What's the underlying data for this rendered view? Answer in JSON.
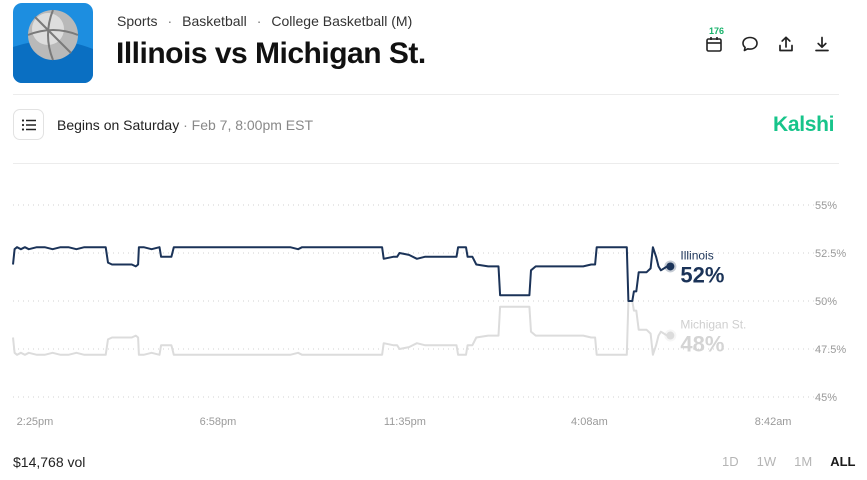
{
  "header": {
    "breadcrumb": [
      "Sports",
      "Basketball",
      "College Basketball (M)"
    ],
    "title": "Illinois vs Michigan St.",
    "calendar_count": "176",
    "icons": [
      "calendar-icon",
      "comment-icon",
      "share-icon",
      "download-icon"
    ]
  },
  "info": {
    "begins": "Begins on Saturday",
    "date": " · Feb 7, 8:00pm EST",
    "brand": "Kalshi"
  },
  "colors": {
    "primary": "#1b3358",
    "secondary": "#dcdcdc",
    "brand": "#17c48a"
  },
  "chart_data": {
    "type": "line",
    "ylim": [
      45,
      55
    ],
    "y_ticks": [
      "55%",
      "52.5%",
      "50%",
      "47.5%",
      "45%"
    ],
    "y_tick_values": [
      55,
      52.5,
      50,
      47.5,
      45
    ],
    "x_ticks": [
      "2:25pm",
      "6:58pm",
      "11:35pm",
      "4:08am",
      "8:42am"
    ],
    "x_tick_positions": [
      0,
      0.231,
      0.467,
      0.7,
      0.932
    ],
    "x_range": [
      0,
      1.0
    ],
    "series": [
      {
        "name": "Illinois",
        "label": "52%",
        "points": [
          [
            0,
            51.9
          ],
          [
            0.002,
            52.7
          ],
          [
            0.005,
            52.8
          ],
          [
            0.01,
            52.7
          ],
          [
            0.015,
            52.8
          ],
          [
            0.02,
            52.7
          ],
          [
            0.03,
            52.8
          ],
          [
            0.04,
            52.8
          ],
          [
            0.05,
            52.7
          ],
          [
            0.06,
            52.8
          ],
          [
            0.07,
            52.8
          ],
          [
            0.08,
            52.7
          ],
          [
            0.09,
            52.8
          ],
          [
            0.1,
            52.8
          ],
          [
            0.117,
            52.8
          ],
          [
            0.12,
            52.0
          ],
          [
            0.125,
            51.9
          ],
          [
            0.15,
            51.9
          ],
          [
            0.155,
            51.8
          ],
          [
            0.158,
            51.9
          ],
          [
            0.159,
            52.8
          ],
          [
            0.165,
            52.8
          ],
          [
            0.175,
            52.7
          ],
          [
            0.185,
            52.8
          ],
          [
            0.187,
            52.3
          ],
          [
            0.19,
            52.3
          ],
          [
            0.2,
            52.3
          ],
          [
            0.203,
            52.8
          ],
          [
            0.25,
            52.8
          ],
          [
            0.3,
            52.8
          ],
          [
            0.35,
            52.8
          ],
          [
            0.36,
            52.7
          ],
          [
            0.365,
            52.8
          ],
          [
            0.4,
            52.8
          ],
          [
            0.45,
            52.8
          ],
          [
            0.466,
            52.8
          ],
          [
            0.468,
            52.2
          ],
          [
            0.48,
            52.3
          ],
          [
            0.485,
            52.3
          ],
          [
            0.488,
            52.5
          ],
          [
            0.5,
            52.4
          ],
          [
            0.51,
            52.2
          ],
          [
            0.52,
            52.3
          ],
          [
            0.53,
            52.3
          ],
          [
            0.55,
            52.3
          ],
          [
            0.56,
            52.3
          ],
          [
            0.562,
            52.8
          ],
          [
            0.572,
            52.8
          ],
          [
            0.574,
            52.3
          ],
          [
            0.58,
            52.3
          ],
          [
            0.585,
            51.9
          ],
          [
            0.6,
            51.8
          ],
          [
            0.613,
            51.8
          ],
          [
            0.615,
            50.3
          ],
          [
            0.64,
            50.3
          ],
          [
            0.652,
            50.3
          ],
          [
            0.654,
            51.6
          ],
          [
            0.66,
            51.8
          ],
          [
            0.68,
            51.8
          ],
          [
            0.7,
            51.8
          ],
          [
            0.72,
            51.8
          ],
          [
            0.73,
            51.9
          ],
          [
            0.735,
            51.9
          ],
          [
            0.737,
            52.8
          ],
          [
            0.76,
            52.8
          ],
          [
            0.77,
            52.8
          ],
          [
            0.775,
            52.8
          ],
          [
            0.777,
            50.0
          ],
          [
            0.782,
            50.0
          ],
          [
            0.784,
            50.5
          ],
          [
            0.787,
            50.5
          ],
          [
            0.79,
            51.5
          ],
          [
            0.8,
            51.5
          ],
          [
            0.805,
            51.7
          ],
          [
            0.808,
            52.8
          ],
          [
            0.812,
            52.3
          ],
          [
            0.815,
            51.8
          ],
          [
            0.818,
            51.6
          ],
          [
            0.822,
            51.7
          ],
          [
            0.826,
            51.8
          ],
          [
            0.83,
            51.8
          ]
        ]
      },
      {
        "name": "Michigan St.",
        "label": "48%",
        "points": [
          [
            0,
            48.1
          ],
          [
            0.002,
            47.3
          ],
          [
            0.005,
            47.2
          ],
          [
            0.01,
            47.3
          ],
          [
            0.015,
            47.2
          ],
          [
            0.02,
            47.3
          ],
          [
            0.03,
            47.2
          ],
          [
            0.04,
            47.2
          ],
          [
            0.05,
            47.3
          ],
          [
            0.06,
            47.2
          ],
          [
            0.07,
            47.2
          ],
          [
            0.08,
            47.3
          ],
          [
            0.09,
            47.2
          ],
          [
            0.1,
            47.2
          ],
          [
            0.117,
            47.2
          ],
          [
            0.12,
            48.0
          ],
          [
            0.125,
            48.1
          ],
          [
            0.15,
            48.1
          ],
          [
            0.155,
            48.2
          ],
          [
            0.158,
            48.1
          ],
          [
            0.159,
            47.2
          ],
          [
            0.165,
            47.2
          ],
          [
            0.175,
            47.3
          ],
          [
            0.185,
            47.2
          ],
          [
            0.187,
            47.7
          ],
          [
            0.19,
            47.7
          ],
          [
            0.2,
            47.7
          ],
          [
            0.203,
            47.2
          ],
          [
            0.25,
            47.2
          ],
          [
            0.3,
            47.2
          ],
          [
            0.35,
            47.2
          ],
          [
            0.36,
            47.3
          ],
          [
            0.365,
            47.2
          ],
          [
            0.4,
            47.2
          ],
          [
            0.45,
            47.2
          ],
          [
            0.466,
            47.2
          ],
          [
            0.468,
            47.8
          ],
          [
            0.48,
            47.7
          ],
          [
            0.485,
            47.7
          ],
          [
            0.488,
            47.5
          ],
          [
            0.5,
            47.6
          ],
          [
            0.51,
            47.8
          ],
          [
            0.52,
            47.7
          ],
          [
            0.53,
            47.7
          ],
          [
            0.55,
            47.7
          ],
          [
            0.56,
            47.7
          ],
          [
            0.562,
            47.2
          ],
          [
            0.572,
            47.2
          ],
          [
            0.574,
            47.7
          ],
          [
            0.58,
            47.7
          ],
          [
            0.585,
            48.1
          ],
          [
            0.6,
            48.2
          ],
          [
            0.613,
            48.2
          ],
          [
            0.615,
            49.7
          ],
          [
            0.64,
            49.7
          ],
          [
            0.652,
            49.7
          ],
          [
            0.654,
            48.4
          ],
          [
            0.66,
            48.2
          ],
          [
            0.68,
            48.2
          ],
          [
            0.7,
            48.2
          ],
          [
            0.72,
            48.2
          ],
          [
            0.73,
            48.1
          ],
          [
            0.735,
            48.1
          ],
          [
            0.737,
            47.2
          ],
          [
            0.76,
            47.2
          ],
          [
            0.77,
            47.2
          ],
          [
            0.775,
            47.2
          ],
          [
            0.777,
            50.0
          ],
          [
            0.782,
            50.0
          ],
          [
            0.784,
            49.5
          ],
          [
            0.787,
            49.5
          ],
          [
            0.79,
            48.5
          ],
          [
            0.8,
            48.5
          ],
          [
            0.805,
            48.3
          ],
          [
            0.808,
            47.2
          ],
          [
            0.812,
            47.7
          ],
          [
            0.815,
            48.2
          ],
          [
            0.818,
            48.4
          ],
          [
            0.822,
            48.3
          ],
          [
            0.826,
            48.2
          ],
          [
            0.83,
            48.2
          ]
        ]
      }
    ]
  },
  "footer": {
    "volume": "$14,768 vol",
    "ranges": [
      "1D",
      "1W",
      "1M",
      "ALL"
    ],
    "active_range": "ALL"
  }
}
